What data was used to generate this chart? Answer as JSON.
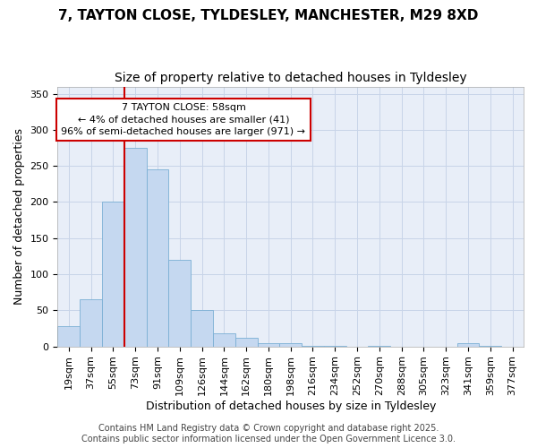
{
  "title_line1": "7, TAYTON CLOSE, TYLDESLEY, MANCHESTER, M29 8XD",
  "title_line2": "Size of property relative to detached houses in Tyldesley",
  "xlabel": "Distribution of detached houses by size in Tyldesley",
  "ylabel": "Number of detached properties",
  "bin_labels": [
    "19sqm",
    "37sqm",
    "55sqm",
    "73sqm",
    "91sqm",
    "109sqm",
    "126sqm",
    "144sqm",
    "162sqm",
    "180sqm",
    "198sqm",
    "216sqm",
    "234sqm",
    "252sqm",
    "270sqm",
    "288sqm",
    "305sqm",
    "323sqm",
    "341sqm",
    "359sqm",
    "377sqm"
  ],
  "bar_heights": [
    28,
    65,
    200,
    275,
    245,
    120,
    50,
    18,
    12,
    5,
    5,
    1,
    1,
    0,
    1,
    0,
    0,
    0,
    4,
    1,
    0
  ],
  "bar_color": "#c5d8f0",
  "bar_edge_color": "#7aafd4",
  "grid_color": "#c8d4e8",
  "background_color": "#ffffff",
  "plot_bg_color": "#e8eef8",
  "vline_color": "#cc0000",
  "vline_x_idx": 2.5,
  "annotation_text": "7 TAYTON CLOSE: 58sqm\n← 4% of detached houses are smaller (41)\n96% of semi-detached houses are larger (971) →",
  "ylim": [
    0,
    360
  ],
  "yticks": [
    0,
    50,
    100,
    150,
    200,
    250,
    300,
    350
  ],
  "footer_text": "Contains HM Land Registry data © Crown copyright and database right 2025.\nContains public sector information licensed under the Open Government Licence 3.0.",
  "title_fontsize": 11,
  "subtitle_fontsize": 10,
  "axis_label_fontsize": 9,
  "tick_fontsize": 8,
  "annotation_fontsize": 8,
  "footer_fontsize": 7
}
